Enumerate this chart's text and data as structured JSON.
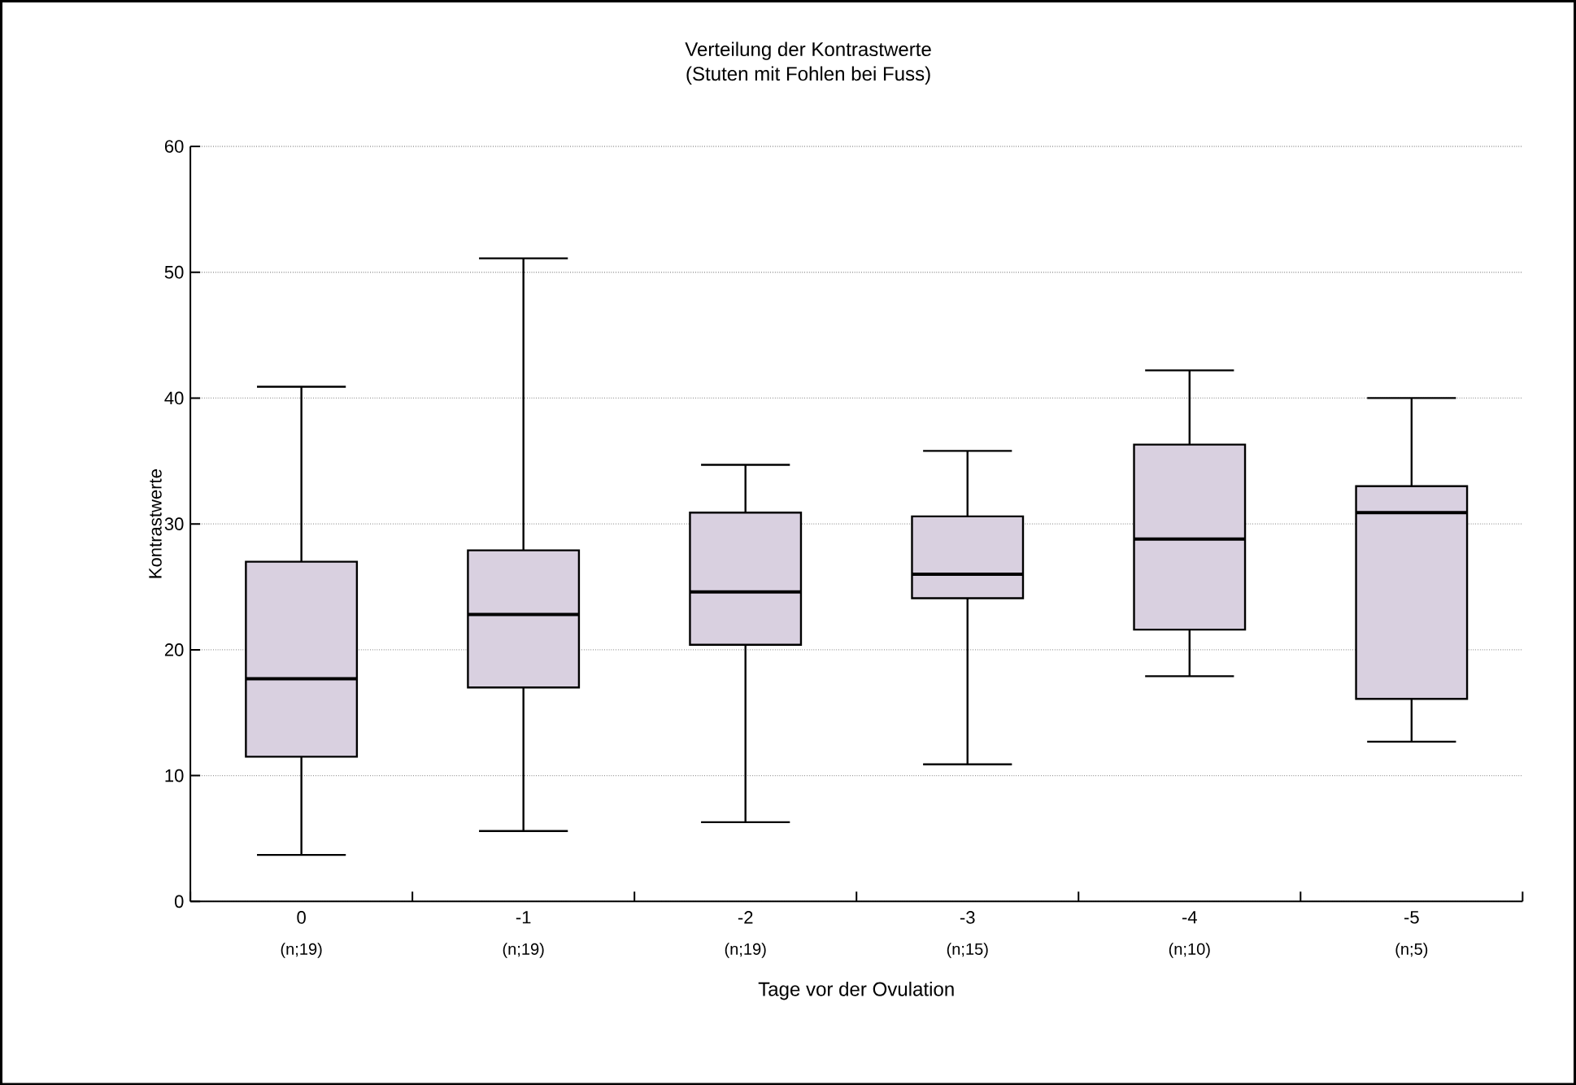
{
  "chart_data": {
    "type": "box",
    "title": "Verteilung der Kontrastwerte",
    "subtitle": "(Stuten mit Fohlen bei Fuss)",
    "xlabel": "Tage vor der Ovulation",
    "ylabel": "Kontrastwerte",
    "categories": [
      "0",
      "-1",
      "-2",
      "-3",
      "-4",
      "-5"
    ],
    "series": [
      {
        "color": "#d9d0e0",
        "boxes": [
          {
            "low": 3.7,
            "q1": 11.5,
            "median": 17.7,
            "q3": 27.0,
            "high": 40.9
          },
          {
            "low": 5.6,
            "q1": 17.0,
            "median": 22.8,
            "q3": 27.9,
            "high": 51.1
          },
          {
            "low": 6.3,
            "q1": 20.4,
            "median": 24.6,
            "q3": 30.9,
            "high": 34.7
          },
          {
            "low": 10.9,
            "q1": 24.1,
            "median": 26.0,
            "q3": 30.6,
            "high": 35.8
          },
          {
            "low": 17.9,
            "q1": 21.6,
            "median": 28.8,
            "q3": 36.3,
            "high": 42.2
          },
          {
            "low": 12.7,
            "q1": 16.1,
            "median": 30.9,
            "q3": 33.0,
            "high": 40.0
          }
        ]
      }
    ],
    "ylim": [
      0,
      60
    ],
    "yticks": [
      0,
      10,
      20,
      30,
      40,
      50,
      60
    ],
    "grid": "y",
    "annotations": [
      "(n;19)",
      "(n;19)",
      "(n;19)",
      "(n;15)",
      "(n;10)",
      "(n;5)"
    ]
  }
}
